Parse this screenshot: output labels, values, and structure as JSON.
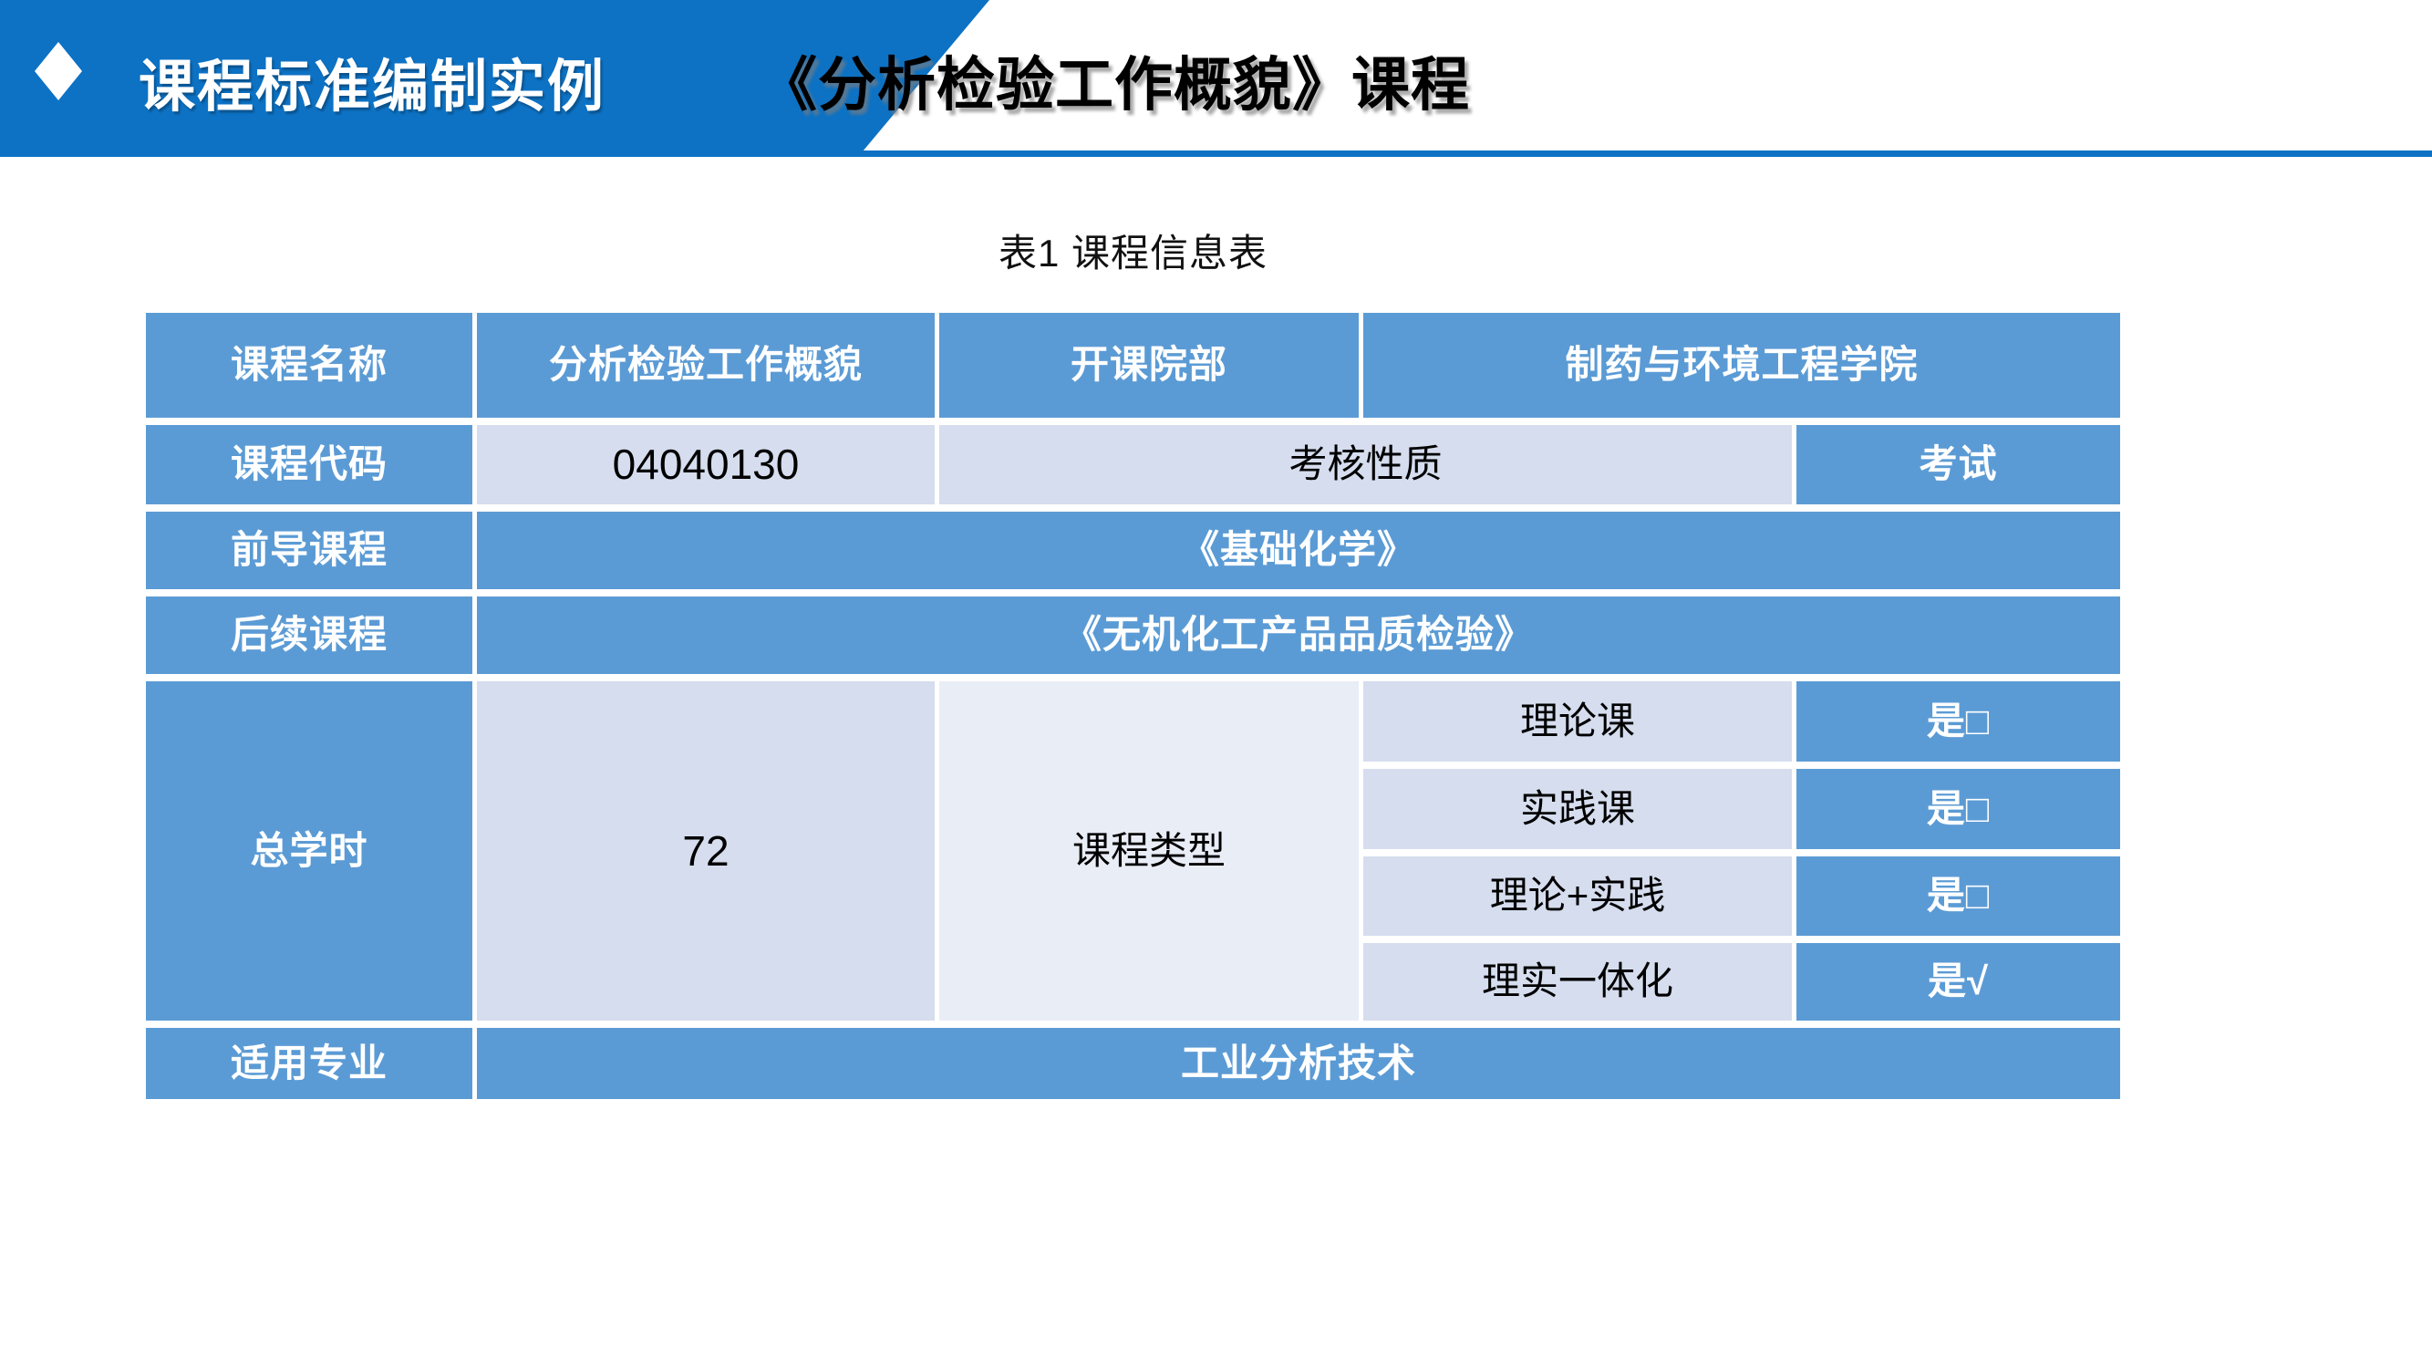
{
  "header": {
    "title_left": "课程标准编制实例",
    "title_right": "《分析检验工作概貌》课程"
  },
  "caption": "表1 课程信息表",
  "table": {
    "row1": {
      "label": "课程名称",
      "value": "分析检验工作概貌",
      "label2": "开课院部",
      "value2": "制药与环境工程学院"
    },
    "row2": {
      "label": "课程代码",
      "value": "04040130",
      "label2": "考核性质",
      "value2": "考试"
    },
    "row3": {
      "label": "前导课程",
      "value": "《基础化学》"
    },
    "row4": {
      "label": "后续课程",
      "value": "《无机化工产品品质检验》"
    },
    "hours": {
      "label": "总学时",
      "value": "72",
      "type_label": "课程类型",
      "types": [
        {
          "name": "理论课",
          "answer": "是□"
        },
        {
          "name": "实践课",
          "answer": "是□"
        },
        {
          "name": "理论+实践",
          "answer": "是□"
        },
        {
          "name": "理实一体化",
          "answer": "是√"
        }
      ]
    },
    "row6": {
      "label": "适用专业",
      "value": "工业分析技术"
    }
  },
  "colors": {
    "banner_blue": "#0d72c4",
    "table_blue": "#5b9bd5",
    "cell_light": "#d5ddee",
    "cell_lighter": "#e9edf6"
  }
}
